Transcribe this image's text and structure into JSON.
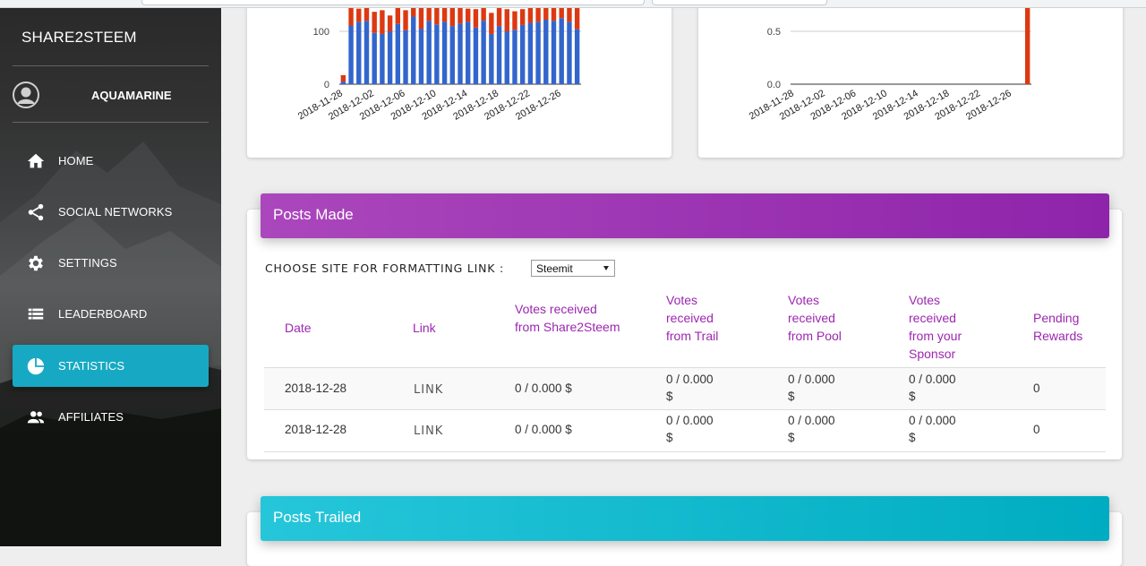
{
  "app": {
    "brand": "SHARE2STEEM",
    "username": "AQUAMARINE"
  },
  "nav": [
    {
      "label": "HOME",
      "icon": "home-icon",
      "active": false
    },
    {
      "label": "SOCIAL NETWORKS",
      "icon": "share-icon",
      "active": false
    },
    {
      "label": "SETTINGS",
      "icon": "gear-icon",
      "active": false
    },
    {
      "label": "LEADERBOARD",
      "icon": "list-icon",
      "active": false
    },
    {
      "label": "STATISTICS",
      "icon": "pie-chart-icon",
      "active": true
    },
    {
      "label": "AFFILIATES",
      "icon": "people-icon",
      "active": false
    }
  ],
  "colors": {
    "accent": "#17a9c4",
    "purple": "#9c27b0",
    "cyan": "#00acc1",
    "bar_blue": "#3366cc",
    "bar_red": "#dc3912"
  },
  "chart_data": [
    {
      "type": "bar",
      "stacked": true,
      "x_tick_labels": [
        "2018-11-28",
        "2018-12-02",
        "2018-12-06",
        "2018-12-10",
        "2018-12-14",
        "2018-12-18",
        "2018-12-22",
        "2018-12-26"
      ],
      "y_tick_labels": [
        "0",
        "100"
      ],
      "series": [
        {
          "color": "#3366cc",
          "values": [
            5,
            111,
            118,
            120,
            97,
            95,
            100,
            114,
            102,
            128,
            105,
            120,
            113,
            118,
            110,
            115,
            118,
            107,
            120,
            95,
            110,
            100,
            103,
            112,
            116,
            118,
            122,
            120,
            125,
            118,
            104
          ]
        },
        {
          "color": "#dc3912",
          "values": [
            12,
            40,
            25,
            30,
            40,
            45,
            30,
            35,
            38,
            20,
            40,
            30,
            32,
            30,
            35,
            30,
            25,
            35,
            28,
            40,
            38,
            42,
            35,
            30,
            28,
            30,
            25,
            28,
            20,
            30,
            40
          ]
        }
      ]
    },
    {
      "type": "bar",
      "x_tick_labels": [
        "2018-11-28",
        "2018-12-02",
        "2018-12-06",
        "2018-12-10",
        "2018-12-14",
        "2018-12-18",
        "2018-12-22",
        "2018-12-26"
      ],
      "y_tick_labels": [
        "0.0",
        "0.5"
      ],
      "series": [
        {
          "color": "#dc3912",
          "values": [
            0,
            0,
            0,
            0,
            0,
            0,
            0,
            0,
            0,
            0,
            0,
            0,
            0,
            0,
            0,
            0,
            0,
            0,
            0,
            0,
            0,
            0,
            0,
            0,
            0,
            0,
            0,
            0,
            0,
            0,
            1
          ]
        }
      ]
    }
  ],
  "posts_made": {
    "title": "Posts Made",
    "choose_label": "CHOOSE SITE FOR FORMATTING LINK :",
    "site_value": "Steemit",
    "columns": [
      "Date",
      "Link",
      "Votes received from Share2Steem",
      "Votes received from Trail",
      "Votes received from Pool",
      "Votes received from your Sponsor",
      "Pending Rewards"
    ],
    "rows": [
      {
        "date": "2018-12-28",
        "link": "LINK",
        "share2steem": "0 / 0.000 $",
        "trail": "0 / 0.000 $",
        "pool": "0 / 0.000 $",
        "sponsor": "0 / 0.000 $",
        "pending": "0"
      },
      {
        "date": "2018-12-28",
        "link": "LINK",
        "share2steem": "0 / 0.000 $",
        "trail": "0 / 0.000 $",
        "pool": "0 / 0.000 $",
        "sponsor": "0 / 0.000 $",
        "pending": "0"
      }
    ]
  },
  "posts_trailed": {
    "title": "Posts Trailed"
  }
}
